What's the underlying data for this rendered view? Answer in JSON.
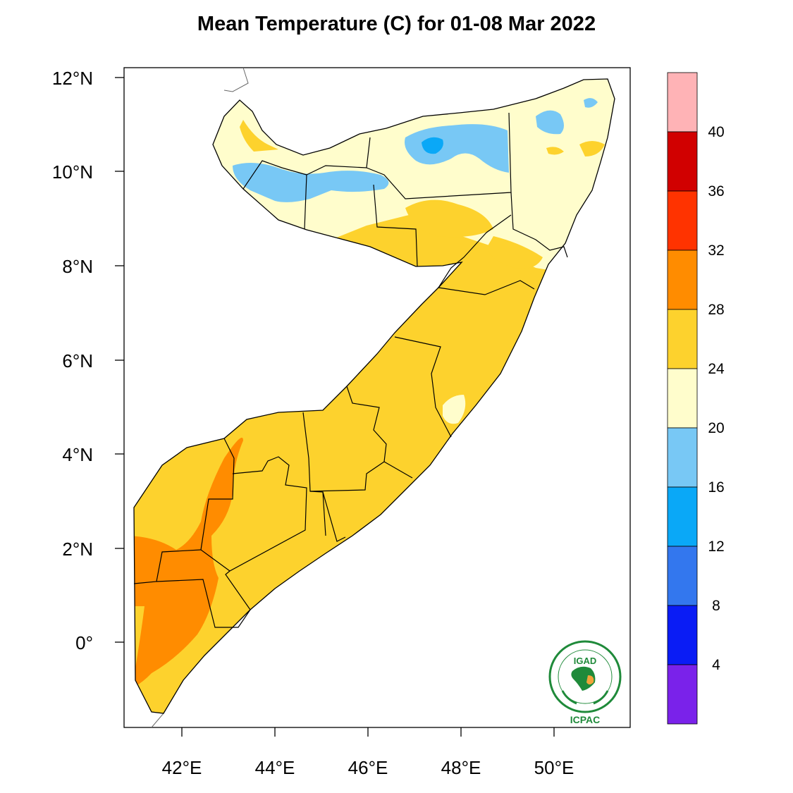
{
  "title": "Mean Temperature (C) for 01-08 Mar 2022",
  "map": {
    "lon_ticks": [
      "42°E",
      "44°E",
      "46°E",
      "48°E",
      "50°E"
    ],
    "lat_ticks": [
      "12°N",
      "10°N",
      "8°N",
      "6°N",
      "4°N",
      "2°N",
      "0°"
    ]
  },
  "colorbar": {
    "labels": [
      "40",
      "36",
      "32",
      "28",
      "24",
      "20",
      "16",
      "12",
      "8",
      "4"
    ],
    "colors_top_to_bottom": [
      "#ffb3b6",
      "#d10000",
      "#ff3300",
      "#ff8c00",
      "#fdd22d",
      "#fffdcc",
      "#78c8f5",
      "#0aa8f7",
      "#3377ee",
      "#0a1cf5",
      "#7a22ea"
    ]
  },
  "logo": {
    "name": "IGAD",
    "org": "ICPAC"
  }
}
